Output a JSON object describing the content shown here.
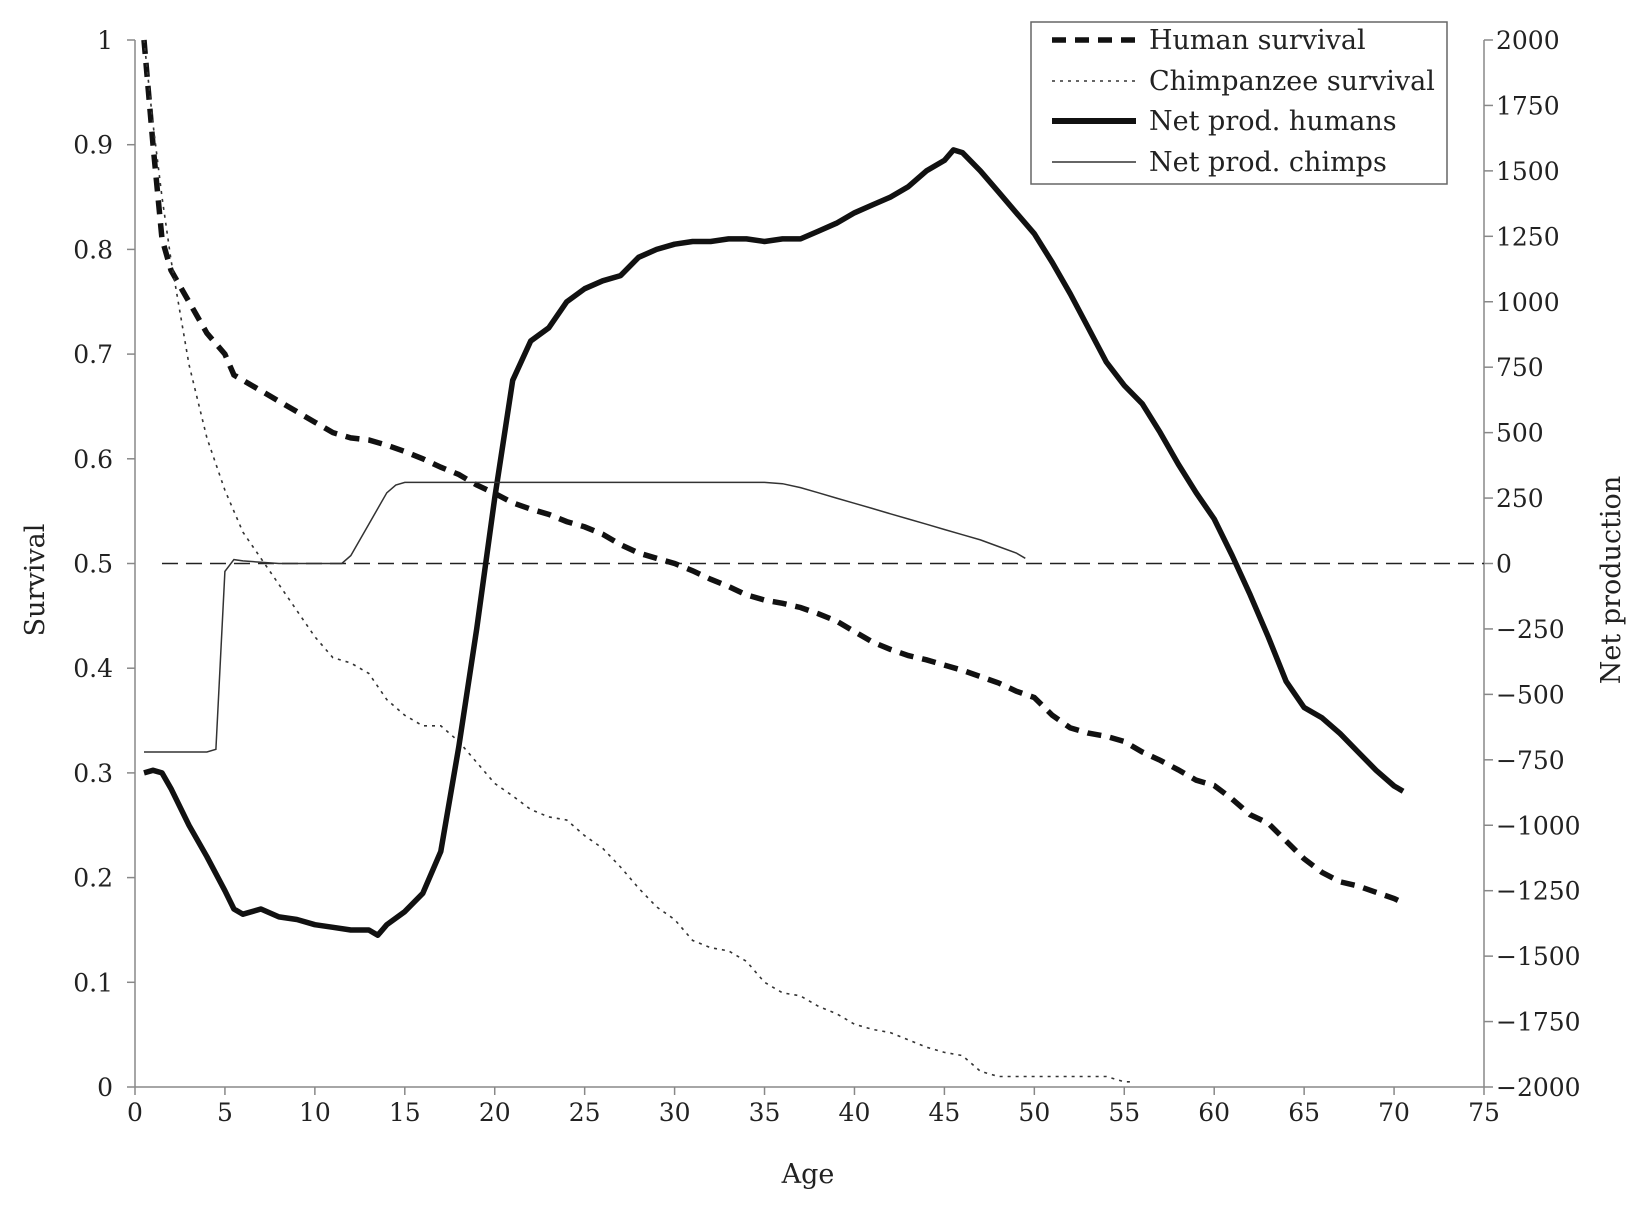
{
  "chart_data": {
    "type": "line",
    "xlabel": "Age",
    "ylabel": "Survival",
    "y2label": "Net production",
    "xlim": [
      0,
      75
    ],
    "ylim": [
      0,
      1
    ],
    "y2lim": [
      -2000,
      2000
    ],
    "x_ticks": [
      "0",
      "5",
      "10",
      "15",
      "20",
      "25",
      "30",
      "35",
      "40",
      "45",
      "50",
      "55",
      "60",
      "65",
      "70",
      "75"
    ],
    "y_ticks": [
      "0",
      "0.1",
      "0.2",
      "0.3",
      "0.4",
      "0.5",
      "0.6",
      "0.7",
      "0.8",
      "0.9",
      "1"
    ],
    "y2_ticks": [
      "−2000",
      "−1750",
      "−1500",
      "−1250",
      "−1000",
      "−750",
      "−500",
      "−250",
      "0",
      "250",
      "500",
      "750",
      "1000",
      "1250",
      "1500",
      "1750",
      "2000"
    ],
    "grid": false,
    "legend_position": "top-right",
    "reference_line": {
      "axis": "y2",
      "value": 0,
      "style": "dashed"
    },
    "series": [
      {
        "name": "Human survival",
        "axis": "left",
        "style": "thick-dashed",
        "x": [
          0.5,
          1,
          1.5,
          2,
          3,
          4,
          5,
          5.5,
          7,
          9,
          10,
          11,
          12,
          13,
          14,
          15,
          16,
          17,
          18,
          19,
          20,
          21,
          22,
          23,
          24,
          25,
          26,
          27,
          28,
          29,
          30,
          31,
          32,
          33,
          34,
          35,
          36,
          37,
          38,
          39,
          40,
          41,
          42,
          43,
          44,
          45,
          46,
          47,
          48,
          49,
          50,
          51,
          52,
          53,
          54,
          55,
          56,
          57,
          58,
          59,
          60,
          61,
          62,
          63,
          64,
          65,
          66,
          67,
          68,
          69,
          70,
          70.5
        ],
        "y": [
          1.0,
          0.9,
          0.81,
          0.78,
          0.75,
          0.72,
          0.7,
          0.68,
          0.665,
          0.645,
          0.635,
          0.625,
          0.62,
          0.618,
          0.613,
          0.607,
          0.6,
          0.592,
          0.585,
          0.575,
          0.567,
          0.558,
          0.552,
          0.547,
          0.54,
          0.535,
          0.528,
          0.518,
          0.51,
          0.505,
          0.5,
          0.493,
          0.485,
          0.478,
          0.47,
          0.465,
          0.462,
          0.458,
          0.452,
          0.445,
          0.435,
          0.425,
          0.418,
          0.412,
          0.408,
          0.403,
          0.398,
          0.392,
          0.386,
          0.378,
          0.372,
          0.355,
          0.343,
          0.338,
          0.335,
          0.33,
          0.32,
          0.312,
          0.303,
          0.293,
          0.288,
          0.275,
          0.26,
          0.252,
          0.235,
          0.218,
          0.205,
          0.196,
          0.192,
          0.186,
          0.18,
          0.176
        ]
      },
      {
        "name": "Chimpanzee survival",
        "axis": "left",
        "style": "dotted",
        "x": [
          0.5,
          1,
          1.5,
          2,
          3,
          4,
          5,
          6,
          7,
          8,
          9,
          10,
          11,
          12,
          13,
          14,
          15,
          16,
          17,
          18,
          19,
          20,
          21,
          22,
          23,
          24,
          25,
          26,
          27,
          28,
          29,
          30,
          31,
          32,
          33,
          34,
          35,
          36,
          37,
          38,
          39,
          40,
          41,
          42,
          43,
          44,
          45,
          46,
          47,
          48,
          49,
          50,
          51,
          52,
          53,
          54,
          55,
          55.5
        ],
        "y": [
          1.0,
          0.92,
          0.85,
          0.79,
          0.69,
          0.62,
          0.57,
          0.53,
          0.505,
          0.48,
          0.455,
          0.43,
          0.41,
          0.405,
          0.395,
          0.37,
          0.355,
          0.345,
          0.345,
          0.33,
          0.31,
          0.29,
          0.278,
          0.265,
          0.258,
          0.255,
          0.24,
          0.228,
          0.21,
          0.19,
          0.172,
          0.16,
          0.14,
          0.133,
          0.13,
          0.12,
          0.1,
          0.09,
          0.087,
          0.077,
          0.07,
          0.06,
          0.055,
          0.052,
          0.045,
          0.038,
          0.033,
          0.03,
          0.015,
          0.01,
          0.01,
          0.01,
          0.01,
          0.01,
          0.01,
          0.01,
          0.005,
          0.005
        ]
      },
      {
        "name": "Net prod. humans",
        "axis": "right",
        "style": "thick-solid",
        "x": [
          0.5,
          1,
          1.5,
          2,
          3,
          4,
          5,
          5.5,
          6,
          7,
          8,
          9,
          10,
          11,
          12,
          13,
          13.5,
          14,
          15,
          16,
          17,
          18,
          19,
          20,
          21,
          22,
          23,
          24,
          25,
          26,
          27,
          28,
          29,
          30,
          31,
          32,
          33,
          34,
          35,
          36,
          37,
          38,
          39,
          40,
          41,
          42,
          43,
          44,
          45,
          45.5,
          46,
          47,
          48,
          49,
          50,
          51,
          52,
          53,
          54,
          55,
          56,
          57,
          58,
          59,
          60,
          61,
          62,
          63,
          64,
          65,
          66,
          67,
          68,
          69,
          70,
          70.5
        ],
        "y": [
          -800,
          -790,
          -800,
          -860,
          -1000,
          -1120,
          -1250,
          -1320,
          -1340,
          -1320,
          -1350,
          -1360,
          -1380,
          -1390,
          -1400,
          -1400,
          -1420,
          -1380,
          -1330,
          -1260,
          -1100,
          -700,
          -250,
          250,
          700,
          850,
          900,
          1000,
          1050,
          1080,
          1100,
          1170,
          1200,
          1220,
          1230,
          1230,
          1240,
          1240,
          1230,
          1240,
          1240,
          1270,
          1300,
          1340,
          1370,
          1400,
          1440,
          1500,
          1540,
          1580,
          1570,
          1500,
          1420,
          1340,
          1260,
          1150,
          1030,
          900,
          770,
          680,
          610,
          500,
          380,
          270,
          170,
          30,
          -120,
          -280,
          -450,
          -550,
          -590,
          -650,
          -720,
          -790,
          -850,
          -870
        ]
      },
      {
        "name": "Net prod. chimps",
        "axis": "right",
        "style": "thin-solid",
        "x": [
          0.5,
          1,
          2,
          3,
          4,
          4.5,
          5,
          5.5,
          6,
          7,
          8,
          9,
          10,
          11,
          11.5,
          12,
          13,
          14,
          14.5,
          15,
          16,
          17,
          18,
          19,
          20,
          21,
          22,
          23,
          24,
          25,
          26,
          27,
          28,
          29,
          30,
          31,
          32,
          33,
          34,
          35,
          36,
          37,
          38,
          39,
          40,
          41,
          42,
          43,
          44,
          45,
          46,
          47,
          48,
          49,
          49.5
        ],
        "y": [
          -720,
          -720,
          -720,
          -720,
          -720,
          -710,
          -30,
          15,
          10,
          5,
          0,
          0,
          0,
          0,
          0,
          30,
          150,
          270,
          300,
          310,
          310,
          310,
          310,
          310,
          310,
          310,
          310,
          310,
          310,
          310,
          310,
          310,
          310,
          310,
          310,
          310,
          310,
          310,
          310,
          310,
          305,
          290,
          270,
          250,
          230,
          210,
          190,
          170,
          150,
          130,
          110,
          90,
          65,
          40,
          20
        ]
      }
    ]
  }
}
